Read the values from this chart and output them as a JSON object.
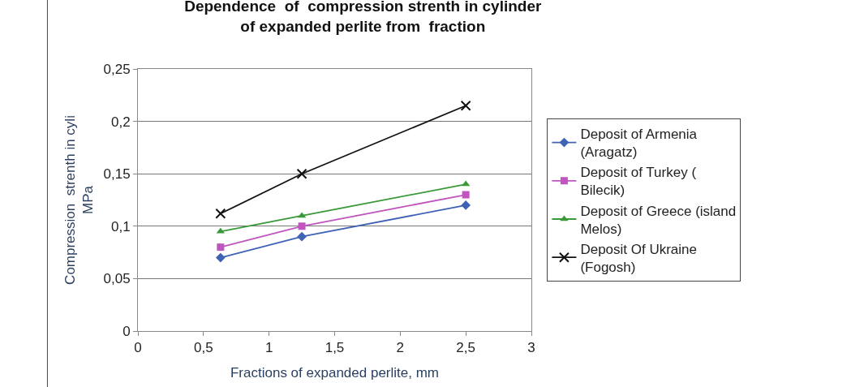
{
  "chart_data": {
    "type": "line",
    "title": "Dependence  of  compression strenth in cylinder\nof expanded perlite from  fraction",
    "xlabel": "Fractions of expanded perlite, mm",
    "ylabel": "Compression  strenth in cyli\nMPa",
    "x": [
      0.63,
      1.25,
      2.5
    ],
    "series": [
      {
        "name": "Deposit of Armenia (Aragatz)",
        "color": "#3f62b5",
        "marker": "diamond",
        "values": [
          0.07,
          0.09,
          0.12
        ]
      },
      {
        "name": "Deposit of Turkey ( Bilecik)",
        "color": "#c055c0",
        "marker": "square",
        "values": [
          0.08,
          0.1,
          0.13
        ]
      },
      {
        "name": "Deposit of Greece (island Melos)",
        "color": "#3a9a3a",
        "marker": "triangle",
        "values": [
          0.095,
          0.11,
          0.14
        ]
      },
      {
        "name": "Deposit Of Ukraine (Fogosh)",
        "color": "#111111",
        "marker": "cross",
        "values": [
          0.112,
          0.15,
          0.215
        ]
      }
    ],
    "xlim": [
      0,
      3
    ],
    "xticks": [
      0,
      {
        "value": 0.5,
        "label": "0,5"
      },
      1,
      {
        "value": 1.5,
        "label": "1,5"
      },
      2,
      {
        "value": 2.5,
        "label": "2,5"
      },
      3
    ],
    "ylim": [
      0,
      0.25
    ],
    "yticks": [
      0,
      {
        "value": 0.05,
        "label": "0,05"
      },
      {
        "value": 0.1,
        "label": "0,1"
      },
      {
        "value": 0.15,
        "label": "0,15"
      },
      {
        "value": 0.2,
        "label": "0,2"
      },
      {
        "value": 0.25,
        "label": "0,25"
      }
    ],
    "grid": "y",
    "legend": "right"
  }
}
